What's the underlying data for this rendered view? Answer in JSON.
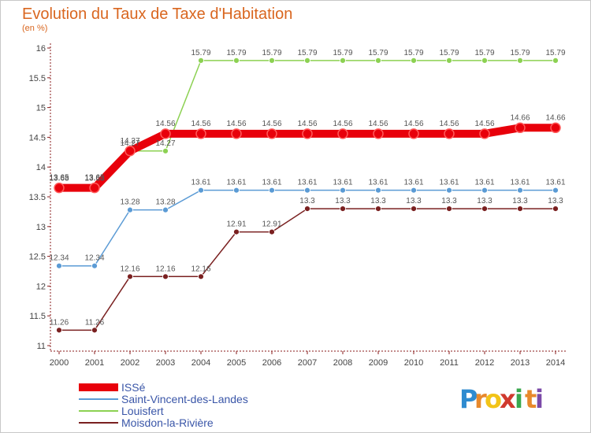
{
  "chart_data": {
    "type": "line",
    "title": "Evolution du Taux de Taxe d'Habitation",
    "subtitle": "(en %)",
    "xlabel": "",
    "ylabel": "",
    "x": [
      "2000",
      "2001",
      "2002",
      "2003",
      "2004",
      "2005",
      "2006",
      "2007",
      "2008",
      "2009",
      "2010",
      "2011",
      "2012",
      "2013",
      "2014"
    ],
    "ylim": [
      11,
      16
    ],
    "yticks": [
      "11",
      "11.5",
      "12",
      "12.5",
      "13",
      "13.5",
      "14",
      "14.5",
      "15",
      "15.5",
      "16"
    ],
    "grid": false,
    "legend_position": "bottom-left",
    "series": [
      {
        "name": "ISSé",
        "color": "#e8000b",
        "values": [
          13.65,
          13.65,
          14.27,
          14.56,
          14.56,
          14.56,
          14.56,
          14.56,
          14.56,
          14.56,
          14.56,
          14.56,
          14.56,
          14.66,
          14.66
        ],
        "labels": [
          "13.65",
          "13.65",
          "14.27",
          "14.56",
          "14.56",
          "14.56",
          "14.56",
          "14.56",
          "14.56",
          "14.56",
          "14.56",
          "14.56",
          "14.56",
          "14.66",
          "14.66"
        ]
      },
      {
        "name": "Saint-Vincent-des-Landes",
        "color": "#5b9bd5",
        "values": [
          12.34,
          12.34,
          13.28,
          13.28,
          13.61,
          13.61,
          13.61,
          13.61,
          13.61,
          13.61,
          13.61,
          13.61,
          13.61,
          13.61,
          13.61
        ],
        "labels": [
          "12.34",
          "12.34",
          "13.28",
          "13.28",
          "13.61",
          "13.61",
          "13.61",
          "13.61",
          "13.61",
          "13.61",
          "13.61",
          "13.61",
          "13.61",
          "13.61",
          "13.61"
        ]
      },
      {
        "name": "Louisfert",
        "color": "#8cd152",
        "values": [
          13.68,
          13.68,
          14.27,
          14.27,
          15.79,
          15.79,
          15.79,
          15.79,
          15.79,
          15.79,
          15.79,
          15.79,
          15.79,
          15.79,
          15.79
        ],
        "labels": [
          "13.68",
          "13.68",
          "14.27",
          "14.27",
          "15.79",
          "15.79",
          "15.79",
          "15.79",
          "15.79",
          "15.79",
          "15.79",
          "15.79",
          "15.79",
          "15.79",
          "15.79"
        ]
      },
      {
        "name": "Moisdon-la-Rivière",
        "color": "#7a2020",
        "values": [
          11.26,
          11.26,
          12.16,
          12.16,
          12.16,
          12.91,
          12.91,
          13.3,
          13.3,
          13.3,
          13.3,
          13.3,
          13.3,
          13.3,
          13.3
        ],
        "labels": [
          "11.26",
          "11.26",
          "12.16",
          "12.16",
          "12.16",
          "12.91",
          "12.91",
          "13.3",
          "13.3",
          "13.3",
          "13.3",
          "13.3",
          "13.3",
          "13.3",
          "13.3"
        ]
      }
    ]
  },
  "brand": {
    "letters": [
      "P",
      "r",
      "o",
      "x",
      "i",
      "t",
      "i"
    ],
    "colors": [
      "#2e8bd0",
      "#e8892c",
      "#f2c418",
      "#d03a2e",
      "#3aa84e",
      "#e8892c",
      "#7b4aa8"
    ]
  }
}
